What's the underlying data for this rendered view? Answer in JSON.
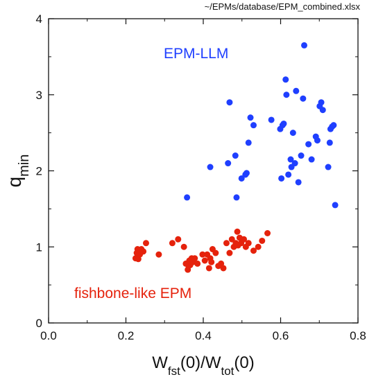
{
  "file_path": "~/EPMs/database/EPM_combined.xlsx",
  "colors": {
    "llm": "#1f3fff",
    "fishbone": "#e5220c",
    "axis": "#111111"
  },
  "chart_data": {
    "type": "scatter",
    "title": "",
    "xlabel": {
      "main": "W",
      "sub1": "fst",
      "mid": "(0)/W",
      "sub2": "tot",
      "end": "(0)"
    },
    "ylabel": {
      "main": "q",
      "sub": "min"
    },
    "xlim": [
      0.0,
      0.8
    ],
    "ylim": [
      0,
      4
    ],
    "xticks": [
      "0.0",
      "0.2",
      "0.4",
      "0.6",
      "0.8"
    ],
    "yticks": [
      "0",
      "1",
      "2",
      "3",
      "4"
    ],
    "grid": false,
    "annotations": [
      "EPM-LLM",
      "fishbone-like EPM"
    ],
    "series": [
      {
        "name": "EPM-LLM",
        "color": "#1f3fff",
        "x": [
          0.358,
          0.418,
          0.464,
          0.468,
          0.483,
          0.486,
          0.499,
          0.509,
          0.512,
          0.517,
          0.522,
          0.53,
          0.576,
          0.599,
          0.602,
          0.605,
          0.608,
          0.613,
          0.615,
          0.62,
          0.626,
          0.628,
          0.632,
          0.637,
          0.64,
          0.646,
          0.653,
          0.658,
          0.661,
          0.672,
          0.68,
          0.691,
          0.695,
          0.701,
          0.705,
          0.709,
          0.723,
          0.727,
          0.729,
          0.733,
          0.737,
          0.741
        ],
        "y": [
          1.65,
          2.05,
          2.1,
          2.9,
          2.2,
          1.65,
          1.9,
          1.95,
          1.97,
          2.37,
          2.7,
          2.6,
          2.67,
          2.55,
          1.9,
          2.6,
          2.62,
          3.2,
          3.0,
          1.95,
          2.15,
          2.05,
          2.5,
          2.1,
          3.05,
          1.85,
          2.2,
          2.95,
          3.65,
          2.35,
          2.15,
          2.45,
          2.4,
          2.85,
          2.9,
          2.8,
          2.05,
          2.37,
          2.55,
          2.58,
          2.6,
          1.55
        ]
      },
      {
        "name": "fishbone-like EPM",
        "color": "#e5220c",
        "x": [
          0.225,
          0.228,
          0.23,
          0.232,
          0.236,
          0.24,
          0.245,
          0.252,
          0.285,
          0.32,
          0.335,
          0.35,
          0.355,
          0.36,
          0.362,
          0.364,
          0.366,
          0.37,
          0.373,
          0.378,
          0.385,
          0.398,
          0.404,
          0.41,
          0.415,
          0.418,
          0.421,
          0.424,
          0.432,
          0.439,
          0.446,
          0.452,
          0.46,
          0.468,
          0.474,
          0.479,
          0.484,
          0.488,
          0.49,
          0.494,
          0.498,
          0.505,
          0.51,
          0.517,
          0.53,
          0.542,
          0.552,
          0.566
        ],
        "y": [
          0.85,
          0.92,
          0.97,
          0.84,
          0.9,
          0.97,
          0.94,
          1.05,
          0.9,
          1.05,
          1.1,
          1.0,
          0.78,
          0.7,
          0.75,
          0.82,
          0.76,
          0.85,
          0.8,
          0.85,
          0.78,
          0.9,
          0.82,
          0.9,
          0.72,
          0.85,
          0.8,
          0.97,
          0.92,
          0.75,
          0.78,
          0.72,
          1.05,
          0.92,
          1.1,
          1.0,
          1.05,
          1.2,
          1.02,
          1.12,
          1.05,
          1.1,
          1.0,
          1.05,
          0.95,
          1.0,
          1.08,
          1.18
        ]
      }
    ]
  }
}
